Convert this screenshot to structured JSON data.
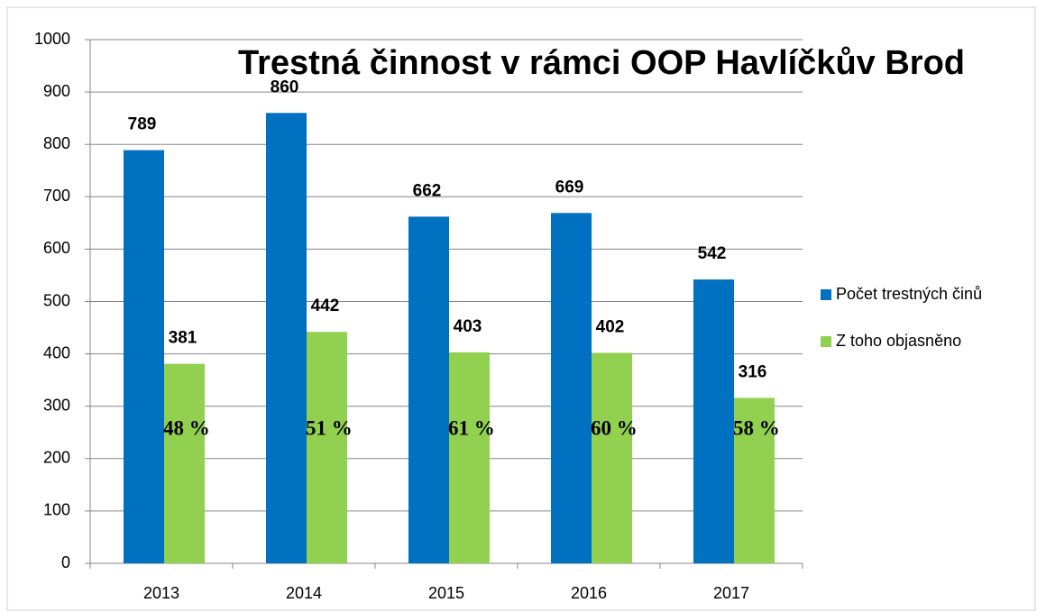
{
  "chart_data": {
    "type": "bar",
    "title": "Trestná činnost v rámci OOP Havlíčkův Brod",
    "categories": [
      "2013",
      "2014",
      "2015",
      "2016",
      "2017"
    ],
    "series": [
      {
        "name": "Počet trestných činů",
        "color": "#0070c0",
        "values": [
          789,
          860,
          662,
          669,
          542
        ]
      },
      {
        "name": "Z toho objasněno",
        "color": "#92d050",
        "values": [
          381,
          442,
          403,
          402,
          316
        ]
      }
    ],
    "annotations": [
      "48 %",
      "51 %",
      "61 %",
      "60 %",
      "58 %"
    ],
    "ylim": [
      0,
      1000
    ],
    "yticks": [
      0,
      100,
      200,
      300,
      400,
      500,
      600,
      700,
      800,
      900,
      1000
    ],
    "grid": true,
    "legend": "right"
  }
}
